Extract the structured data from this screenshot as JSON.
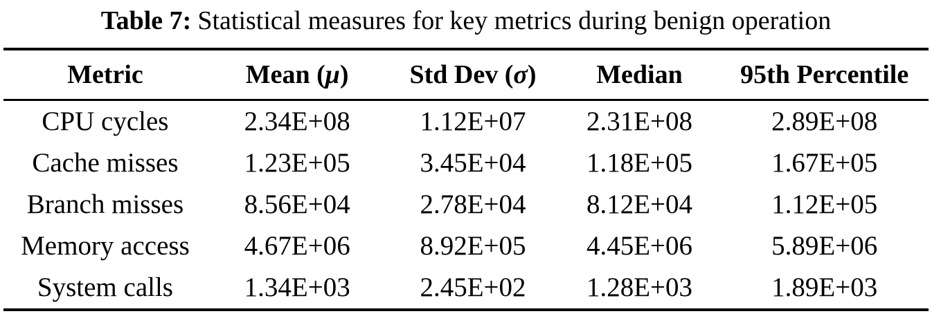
{
  "caption": {
    "label": "Table 7:",
    "text": "Statistical measures for key metrics during benign operation"
  },
  "table": {
    "headers": [
      {
        "pre": "Metric",
        "sym": "",
        "post": ""
      },
      {
        "pre": "Mean (",
        "sym": "μ",
        "post": ")"
      },
      {
        "pre": "Std Dev (",
        "sym": "σ",
        "post": ")"
      },
      {
        "pre": "Median",
        "sym": "",
        "post": ""
      },
      {
        "pre": "95th Percentile",
        "sym": "",
        "post": ""
      }
    ],
    "rows": [
      [
        "CPU cycles",
        "2.34E+08",
        "1.12E+07",
        "2.31E+08",
        "2.89E+08"
      ],
      [
        "Cache misses",
        "1.23E+05",
        "3.45E+04",
        "1.18E+05",
        "1.67E+05"
      ],
      [
        "Branch misses",
        "8.56E+04",
        "2.78E+04",
        "8.12E+04",
        "1.12E+05"
      ],
      [
        "Memory access",
        "4.67E+06",
        "8.92E+05",
        "4.45E+06",
        "5.89E+06"
      ],
      [
        "System calls",
        "1.34E+03",
        "2.45E+02",
        "1.28E+03",
        "1.89E+03"
      ]
    ]
  },
  "colors": {
    "text": "#000000",
    "background": "#ffffff",
    "rule": "#000000"
  }
}
